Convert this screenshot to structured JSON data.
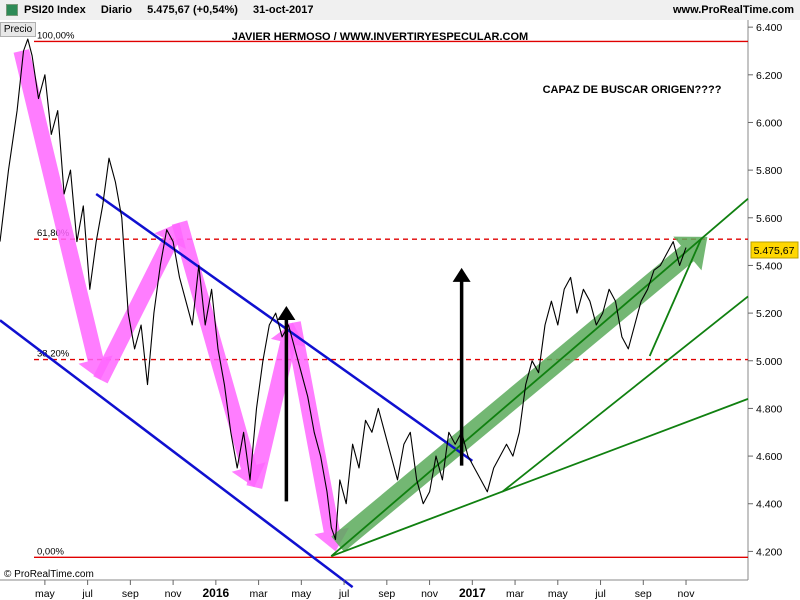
{
  "header": {
    "symbol": "PSI20 Index",
    "period": "Diario",
    "last_value": "5.475,67 (+0,54%)",
    "date": "31-oct-2017",
    "site": "www.ProRealTime.com"
  },
  "panel_label": "Precio",
  "copyright": "© ProRealTime.com",
  "chart_data": {
    "type": "line",
    "title": "JAVIER HERMOSO / WWW.INVERTIRYESPECULAR.COM",
    "annotation": "CAPAZ DE BUSCAR ORIGEN????",
    "last_price_label": "5.475,67",
    "ylim": [
      4080,
      6430
    ],
    "y_ticks": [
      {
        "value": 4200,
        "label": "4.200"
      },
      {
        "value": 4400,
        "label": "4.400"
      },
      {
        "value": 4600,
        "label": "4.600"
      },
      {
        "value": 4800,
        "label": "4.800"
      },
      {
        "value": 5000,
        "label": "5.000"
      },
      {
        "value": 5200,
        "label": "5.200"
      },
      {
        "value": 5400,
        "label": "5.400"
      },
      {
        "value": 5600,
        "label": "5.600"
      },
      {
        "value": 5800,
        "label": "5.800"
      },
      {
        "value": 6000,
        "label": "6.000"
      },
      {
        "value": 6200,
        "label": "6.200"
      },
      {
        "value": 6400,
        "label": "6.400"
      }
    ],
    "x_ticks": [
      {
        "t": 0.6,
        "label": "may",
        "bold": false
      },
      {
        "t": 2.6,
        "label": "jul",
        "bold": false
      },
      {
        "t": 4.6,
        "label": "sep",
        "bold": false
      },
      {
        "t": 6.6,
        "label": "nov",
        "bold": false
      },
      {
        "t": 8.6,
        "label": "2016",
        "bold": true
      },
      {
        "t": 10.6,
        "label": "mar",
        "bold": false
      },
      {
        "t": 12.6,
        "label": "may",
        "bold": false
      },
      {
        "t": 14.6,
        "label": "jul",
        "bold": false
      },
      {
        "t": 16.6,
        "label": "sep",
        "bold": false
      },
      {
        "t": 18.6,
        "label": "nov",
        "bold": false
      },
      {
        "t": 20.6,
        "label": "2017",
        "bold": true
      },
      {
        "t": 22.6,
        "label": "mar",
        "bold": false
      },
      {
        "t": 24.6,
        "label": "may",
        "bold": false
      },
      {
        "t": 26.6,
        "label": "jul",
        "bold": false
      },
      {
        "t": 28.6,
        "label": "sep",
        "bold": false
      },
      {
        "t": 30.6,
        "label": "nov",
        "bold": false
      }
    ],
    "fib_levels": [
      {
        "value": 6340,
        "label": "100,00%",
        "color": "#e00000",
        "style": "solid"
      },
      {
        "value": 5510,
        "label": "61,80%",
        "color": "#e00000",
        "style": "dashed"
      },
      {
        "value": 5005,
        "label": "38,20%",
        "color": "#e00000",
        "style": "dashed"
      },
      {
        "value": 4175,
        "label": "0,00%",
        "color": "#e00000",
        "style": "solid"
      }
    ],
    "series": [
      {
        "color": "#000000",
        "points": [
          [
            -1.5,
            5500
          ],
          [
            -1.1,
            5800
          ],
          [
            -0.7,
            6050
          ],
          [
            -0.4,
            6300
          ],
          [
            -0.2,
            6350
          ],
          [
            0.0,
            6280
          ],
          [
            0.3,
            6100
          ],
          [
            0.6,
            6200
          ],
          [
            0.9,
            5950
          ],
          [
            1.2,
            6050
          ],
          [
            1.5,
            5700
          ],
          [
            1.8,
            5800
          ],
          [
            2.1,
            5500
          ],
          [
            2.4,
            5650
          ],
          [
            2.7,
            5300
          ],
          [
            3.0,
            5500
          ],
          [
            3.3,
            5650
          ],
          [
            3.6,
            5850
          ],
          [
            3.9,
            5750
          ],
          [
            4.2,
            5600
          ],
          [
            4.5,
            5200
          ],
          [
            4.8,
            5050
          ],
          [
            5.1,
            5150
          ],
          [
            5.4,
            4900
          ],
          [
            5.7,
            5200
          ],
          [
            6.0,
            5400
          ],
          [
            6.3,
            5550
          ],
          [
            6.6,
            5500
          ],
          [
            6.9,
            5350
          ],
          [
            7.2,
            5250
          ],
          [
            7.5,
            5150
          ],
          [
            7.8,
            5400
          ],
          [
            8.1,
            5150
          ],
          [
            8.4,
            5300
          ],
          [
            8.7,
            5050
          ],
          [
            9.0,
            4900
          ],
          [
            9.3,
            4700
          ],
          [
            9.6,
            4550
          ],
          [
            9.9,
            4700
          ],
          [
            10.2,
            4500
          ],
          [
            10.5,
            4800
          ],
          [
            10.8,
            5000
          ],
          [
            11.1,
            5150
          ],
          [
            11.4,
            5200
          ],
          [
            11.7,
            5100
          ],
          [
            12.0,
            5150
          ],
          [
            12.3,
            5050
          ],
          [
            12.6,
            4950
          ],
          [
            12.9,
            4850
          ],
          [
            13.2,
            4700
          ],
          [
            13.5,
            4600
          ],
          [
            13.8,
            4450
          ],
          [
            14.0,
            4300
          ],
          [
            14.2,
            4250
          ],
          [
            14.4,
            4500
          ],
          [
            14.7,
            4400
          ],
          [
            15.0,
            4650
          ],
          [
            15.3,
            4550
          ],
          [
            15.6,
            4750
          ],
          [
            15.9,
            4700
          ],
          [
            16.2,
            4800
          ],
          [
            16.5,
            4700
          ],
          [
            16.8,
            4600
          ],
          [
            17.1,
            4500
          ],
          [
            17.4,
            4650
          ],
          [
            17.7,
            4700
          ],
          [
            18.0,
            4500
          ],
          [
            18.3,
            4400
          ],
          [
            18.6,
            4450
          ],
          [
            18.9,
            4600
          ],
          [
            19.2,
            4500
          ],
          [
            19.5,
            4700
          ],
          [
            19.8,
            4650
          ],
          [
            20.1,
            4700
          ],
          [
            20.4,
            4600
          ],
          [
            20.7,
            4550
          ],
          [
            21.0,
            4500
          ],
          [
            21.3,
            4450
          ],
          [
            21.6,
            4550
          ],
          [
            21.9,
            4600
          ],
          [
            22.2,
            4650
          ],
          [
            22.5,
            4600
          ],
          [
            22.8,
            4700
          ],
          [
            23.1,
            4900
          ],
          [
            23.4,
            5000
          ],
          [
            23.7,
            4950
          ],
          [
            24.0,
            5150
          ],
          [
            24.3,
            5250
          ],
          [
            24.6,
            5150
          ],
          [
            24.9,
            5300
          ],
          [
            25.2,
            5350
          ],
          [
            25.5,
            5200
          ],
          [
            25.8,
            5300
          ],
          [
            26.1,
            5250
          ],
          [
            26.4,
            5150
          ],
          [
            26.7,
            5200
          ],
          [
            27.0,
            5300
          ],
          [
            27.3,
            5250
          ],
          [
            27.6,
            5100
          ],
          [
            27.9,
            5050
          ],
          [
            28.2,
            5150
          ],
          [
            28.5,
            5250
          ],
          [
            28.8,
            5300
          ],
          [
            29.1,
            5380
          ],
          [
            29.4,
            5400
          ],
          [
            29.7,
            5450
          ],
          [
            30.0,
            5500
          ],
          [
            30.3,
            5400
          ],
          [
            30.6,
            5475
          ]
        ]
      }
    ],
    "channels": [
      {
        "color": "#1010d0",
        "from": [
          3.0,
          5700
        ],
        "to": [
          20.6,
          4580
        ]
      },
      {
        "color": "#1010d0",
        "from": [
          -1.5,
          5170
        ],
        "to": [
          15.0,
          4050
        ]
      }
    ],
    "support_lines": [
      {
        "color": "#108010",
        "from": [
          14.0,
          4180
        ],
        "to": [
          33.5,
          5680
        ]
      },
      {
        "color": "#108010",
        "from": [
          14.0,
          4180
        ],
        "to": [
          33.5,
          4840
        ]
      },
      {
        "color": "#108010",
        "from": [
          22.0,
          4450
        ],
        "to": [
          33.5,
          5270
        ]
      },
      {
        "color": "#108010",
        "from": [
          28.9,
          5020
        ],
        "to": [
          31.3,
          5510
        ]
      }
    ],
    "zigzag_arrows": [
      {
        "color": "#ff66ff",
        "from": [
          -0.5,
          6300
        ],
        "to": [
          3.2,
          4920
        ]
      },
      {
        "color": "#ff66ff",
        "from": [
          3.2,
          4920
        ],
        "to": [
          6.9,
          5580
        ]
      },
      {
        "color": "#ff66ff",
        "from": [
          6.9,
          5580
        ],
        "to": [
          10.4,
          4470
        ]
      },
      {
        "color": "#ff66ff",
        "from": [
          10.4,
          4470
        ],
        "to": [
          12.2,
          5160
        ]
      },
      {
        "color": "#ff66ff",
        "from": [
          12.2,
          5160
        ],
        "to": [
          14.2,
          4200
        ]
      }
    ],
    "trend_arrow": {
      "color": "#5aaa5a",
      "from": [
        14.3,
        4230
      ],
      "to": [
        31.6,
        5520
      ]
    },
    "vertical_arrows": [
      {
        "color": "#000000",
        "from": [
          11.9,
          4410
        ],
        "to": [
          11.9,
          5230
        ]
      },
      {
        "color": "#000000",
        "from": [
          20.1,
          4560
        ],
        "to": [
          20.1,
          5390
        ]
      }
    ]
  }
}
